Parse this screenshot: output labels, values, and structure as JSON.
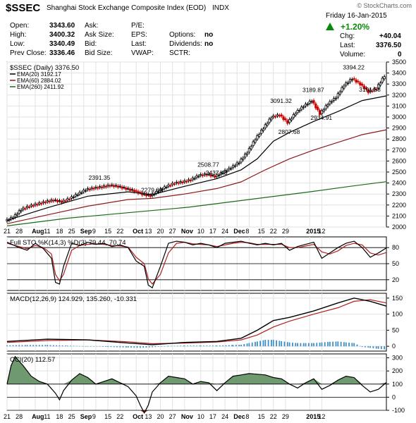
{
  "header": {
    "ticker": "$SSEC",
    "name": "Shanghai Stock Exchange Composite Index (EOD)",
    "exchange": "INDX",
    "watermark": "© StockCharts.com",
    "date_label": "Friday  16-Jan-2015",
    "pct_change": "+1.20%",
    "fields": {
      "open_l": "Open:",
      "open_v": "3343.60",
      "high_l": "High:",
      "high_v": "3400.32",
      "low_l": "Low:",
      "low_v": "3340.49",
      "prev_l": "Prev Close:",
      "prev_v": "3336.46",
      "ask_l": "Ask:",
      "asksize_l": "Ask Size:",
      "bid_l": "Bid:",
      "bidsize_l": "Bid Size:",
      "pe_l": "P/E:",
      "eps_l": "EPS:",
      "last_l": "Last:",
      "vwap_l": "VWAP:",
      "options_l": "Options:",
      "options_v": "no",
      "dividends_l": "Dividends:",
      "dividends_v": "no",
      "sctr_l": "SCTR:",
      "chg_l": "Chg:",
      "chg_v": "+40.04",
      "last2_l": "Last:",
      "last2_v": "3376.50",
      "volume_l": "Volume:",
      "volume_v": "0"
    }
  },
  "chart_data": [
    {
      "type": "candlestick",
      "title": "$SSEC (Daily) 3376.50",
      "ylim": [
        2000,
        3500
      ],
      "yticks": [
        2000,
        2100,
        2200,
        2300,
        2400,
        2500,
        2600,
        2700,
        2800,
        2900,
        3000,
        3100,
        3200,
        3300,
        3400,
        3500
      ],
      "legend": [
        {
          "name": "EMA(20) 3192.17",
          "color": "#000000"
        },
        {
          "name": "EMA(60) 2884.02",
          "color": "#8b1a1a"
        },
        {
          "name": "EMA(260) 2411.92",
          "color": "#1a6b1a"
        }
      ],
      "close_series": [
        [
          0,
          2055
        ],
        [
          4,
          2090
        ],
        [
          8,
          2160
        ],
        [
          12,
          2190
        ],
        [
          16,
          2210
        ],
        [
          20,
          2230
        ],
        [
          24,
          2245
        ],
        [
          28,
          2230
        ],
        [
          32,
          2260
        ],
        [
          36,
          2300
        ],
        [
          40,
          2340
        ],
        [
          44,
          2355
        ],
        [
          48,
          2365
        ],
        [
          52,
          2380
        ],
        [
          56,
          2370
        ],
        [
          60,
          2350
        ],
        [
          64,
          2330
        ],
        [
          68,
          2300
        ],
        [
          72,
          2285
        ],
        [
          76,
          2330
        ],
        [
          80,
          2370
        ],
        [
          84,
          2400
        ],
        [
          88,
          2410
        ],
        [
          92,
          2430
        ],
        [
          96,
          2470
        ],
        [
          100,
          2480
        ],
        [
          104,
          2460
        ],
        [
          108,
          2500
        ],
        [
          112,
          2540
        ],
        [
          116,
          2590
        ],
        [
          120,
          2680
        ],
        [
          124,
          2800
        ],
        [
          128,
          2900
        ],
        [
          132,
          3000
        ],
        [
          136,
          3020
        ],
        [
          140,
          2950
        ],
        [
          144,
          3040
        ],
        [
          148,
          3100
        ],
        [
          152,
          3150
        ],
        [
          156,
          3030
        ],
        [
          160,
          3120
        ],
        [
          164,
          3180
        ],
        [
          168,
          3290
        ],
        [
          172,
          3350
        ],
        [
          176,
          3300
        ],
        [
          180,
          3230
        ],
        [
          184,
          3260
        ],
        [
          188,
          3376
        ]
      ],
      "ema20": [
        [
          0,
          2060
        ],
        [
          20,
          2175
        ],
        [
          40,
          2280
        ],
        [
          60,
          2320
        ],
        [
          72,
          2295
        ],
        [
          88,
          2370
        ],
        [
          104,
          2440
        ],
        [
          116,
          2520
        ],
        [
          124,
          2620
        ],
        [
          132,
          2780
        ],
        [
          140,
          2860
        ],
        [
          152,
          2960
        ],
        [
          164,
          3050
        ],
        [
          176,
          3150
        ],
        [
          188,
          3192
        ]
      ],
      "ema60": [
        [
          0,
          2030
        ],
        [
          20,
          2110
        ],
        [
          40,
          2190
        ],
        [
          60,
          2250
        ],
        [
          72,
          2260
        ],
        [
          88,
          2300
        ],
        [
          104,
          2350
        ],
        [
          116,
          2410
        ],
        [
          128,
          2520
        ],
        [
          140,
          2620
        ],
        [
          152,
          2700
        ],
        [
          164,
          2770
        ],
        [
          176,
          2840
        ],
        [
          188,
          2884
        ]
      ],
      "ema260": [
        [
          0,
          2010
        ],
        [
          30,
          2080
        ],
        [
          60,
          2130
        ],
        [
          90,
          2180
        ],
        [
          120,
          2250
        ],
        [
          150,
          2320
        ],
        [
          170,
          2370
        ],
        [
          188,
          2412
        ]
      ],
      "annotations": [
        {
          "label": "2391.35",
          "x": 46,
          "y": 2391
        },
        {
          "label": "2279.84",
          "x": 72,
          "y": 2280
        },
        {
          "label": "2508.77",
          "x": 100,
          "y": 2509
        },
        {
          "label": "2437.48",
          "x": 104,
          "y": 2437
        },
        {
          "label": "3091.32",
          "x": 136,
          "y": 3091
        },
        {
          "label": "2807.68",
          "x": 140,
          "y": 2808
        },
        {
          "label": "3189.87",
          "x": 152,
          "y": 3190
        },
        {
          "label": "2934.91",
          "x": 156,
          "y": 2935
        },
        {
          "label": "3394.22",
          "x": 172,
          "y": 3394
        },
        {
          "label": "3191.58",
          "x": 180,
          "y": 3192
        }
      ]
    },
    {
      "type": "line",
      "title": "Full STO %K(14,3) %D(3) 79.44, 70.74",
      "ylim": [
        0,
        100
      ],
      "yticks": [
        20,
        50,
        80
      ],
      "ref_lines": [
        20,
        50,
        80
      ],
      "k": [
        [
          0,
          90
        ],
        [
          6,
          80
        ],
        [
          10,
          75
        ],
        [
          14,
          88
        ],
        [
          18,
          78
        ],
        [
          22,
          60
        ],
        [
          24,
          15
        ],
        [
          26,
          12
        ],
        [
          28,
          45
        ],
        [
          32,
          88
        ],
        [
          36,
          84
        ],
        [
          40,
          90
        ],
        [
          44,
          86
        ],
        [
          48,
          88
        ],
        [
          52,
          82
        ],
        [
          56,
          85
        ],
        [
          60,
          80
        ],
        [
          64,
          55
        ],
        [
          68,
          45
        ],
        [
          70,
          10
        ],
        [
          72,
          5
        ],
        [
          76,
          45
        ],
        [
          80,
          88
        ],
        [
          84,
          92
        ],
        [
          88,
          90
        ],
        [
          92,
          85
        ],
        [
          96,
          88
        ],
        [
          100,
          85
        ],
        [
          104,
          80
        ],
        [
          108,
          88
        ],
        [
          112,
          90
        ],
        [
          116,
          92
        ],
        [
          120,
          88
        ],
        [
          124,
          85
        ],
        [
          128,
          88
        ],
        [
          132,
          85
        ],
        [
          136,
          88
        ],
        [
          140,
          75
        ],
        [
          144,
          82
        ],
        [
          148,
          86
        ],
        [
          152,
          90
        ],
        [
          156,
          60
        ],
        [
          160,
          70
        ],
        [
          164,
          80
        ],
        [
          168,
          88
        ],
        [
          172,
          92
        ],
        [
          176,
          80
        ],
        [
          180,
          62
        ],
        [
          184,
          70
        ],
        [
          188,
          79.44
        ]
      ],
      "d": [
        [
          0,
          88
        ],
        [
          6,
          82
        ],
        [
          10,
          78
        ],
        [
          14,
          84
        ],
        [
          18,
          80
        ],
        [
          22,
          68
        ],
        [
          24,
          30
        ],
        [
          26,
          18
        ],
        [
          28,
          30
        ],
        [
          32,
          75
        ],
        [
          36,
          84
        ],
        [
          40,
          86
        ],
        [
          44,
          87
        ],
        [
          48,
          86
        ],
        [
          52,
          84
        ],
        [
          56,
          83
        ],
        [
          60,
          81
        ],
        [
          64,
          62
        ],
        [
          68,
          50
        ],
        [
          70,
          22
        ],
        [
          72,
          12
        ],
        [
          76,
          30
        ],
        [
          80,
          70
        ],
        [
          84,
          88
        ],
        [
          88,
          90
        ],
        [
          92,
          87
        ],
        [
          96,
          86
        ],
        [
          100,
          85
        ],
        [
          104,
          82
        ],
        [
          108,
          85
        ],
        [
          112,
          88
        ],
        [
          116,
          90
        ],
        [
          120,
          89
        ],
        [
          124,
          86
        ],
        [
          128,
          86
        ],
        [
          132,
          86
        ],
        [
          136,
          86
        ],
        [
          140,
          80
        ],
        [
          144,
          80
        ],
        [
          148,
          83
        ],
        [
          152,
          86
        ],
        [
          156,
          72
        ],
        [
          160,
          68
        ],
        [
          164,
          74
        ],
        [
          168,
          84
        ],
        [
          172,
          88
        ],
        [
          176,
          85
        ],
        [
          180,
          70
        ],
        [
          184,
          66
        ],
        [
          188,
          70.74
        ]
      ]
    },
    {
      "type": "line",
      "title": "MACD(12,26,9) 124.929, 135.260, -10.331",
      "ylim": [
        -15,
        165
      ],
      "yticks": [
        0,
        50,
        100,
        150
      ],
      "macd": [
        [
          0,
          15
        ],
        [
          20,
          22
        ],
        [
          40,
          20
        ],
        [
          60,
          10
        ],
        [
          72,
          5
        ],
        [
          88,
          12
        ],
        [
          104,
          15
        ],
        [
          116,
          25
        ],
        [
          124,
          50
        ],
        [
          132,
          80
        ],
        [
          140,
          90
        ],
        [
          152,
          110
        ],
        [
          164,
          135
        ],
        [
          172,
          150
        ],
        [
          180,
          140
        ],
        [
          188,
          125
        ]
      ],
      "signal": [
        [
          0,
          12
        ],
        [
          20,
          18
        ],
        [
          40,
          20
        ],
        [
          60,
          14
        ],
        [
          72,
          8
        ],
        [
          88,
          10
        ],
        [
          104,
          13
        ],
        [
          116,
          20
        ],
        [
          124,
          35
        ],
        [
          132,
          60
        ],
        [
          140,
          78
        ],
        [
          152,
          100
        ],
        [
          164,
          120
        ],
        [
          172,
          140
        ],
        [
          180,
          145
        ],
        [
          188,
          135
        ]
      ],
      "histogram": [
        [
          0,
          3
        ],
        [
          10,
          4
        ],
        [
          20,
          4
        ],
        [
          30,
          2
        ],
        [
          40,
          0
        ],
        [
          50,
          -2
        ],
        [
          60,
          -4
        ],
        [
          66,
          -5
        ],
        [
          72,
          -3
        ],
        [
          80,
          1
        ],
        [
          88,
          2
        ],
        [
          96,
          2
        ],
        [
          104,
          2
        ],
        [
          112,
          4
        ],
        [
          116,
          5
        ],
        [
          120,
          10
        ],
        [
          124,
          15
        ],
        [
          128,
          20
        ],
        [
          132,
          20
        ],
        [
          136,
          16
        ],
        [
          140,
          12
        ],
        [
          144,
          10
        ],
        [
          148,
          10
        ],
        [
          152,
          10
        ],
        [
          156,
          12
        ],
        [
          160,
          14
        ],
        [
          164,
          15
        ],
        [
          168,
          12
        ],
        [
          172,
          10
        ],
        [
          176,
          -2
        ],
        [
          180,
          -5
        ],
        [
          184,
          -8
        ],
        [
          188,
          -10
        ]
      ]
    },
    {
      "type": "area",
      "title": "CCI(20) 112.57",
      "ylim": [
        -100,
        330
      ],
      "yticks": [
        -100,
        0,
        100,
        200,
        300
      ],
      "ref_lines": [
        -100,
        0,
        100
      ],
      "values": [
        [
          0,
          100
        ],
        [
          2,
          240
        ],
        [
          4,
          310
        ],
        [
          8,
          240
        ],
        [
          12,
          160
        ],
        [
          16,
          120
        ],
        [
          20,
          100
        ],
        [
          24,
          30
        ],
        [
          26,
          -20
        ],
        [
          28,
          50
        ],
        [
          32,
          130
        ],
        [
          36,
          180
        ],
        [
          40,
          150
        ],
        [
          44,
          100
        ],
        [
          48,
          120
        ],
        [
          52,
          140
        ],
        [
          56,
          110
        ],
        [
          60,
          80
        ],
        [
          64,
          10
        ],
        [
          66,
          -60
        ],
        [
          68,
          -120
        ],
        [
          70,
          -60
        ],
        [
          72,
          40
        ],
        [
          76,
          110
        ],
        [
          80,
          160
        ],
        [
          84,
          150
        ],
        [
          88,
          140
        ],
        [
          92,
          100
        ],
        [
          96,
          120
        ],
        [
          100,
          110
        ],
        [
          104,
          50
        ],
        [
          108,
          110
        ],
        [
          112,
          160
        ],
        [
          116,
          170
        ],
        [
          120,
          180
        ],
        [
          124,
          175
        ],
        [
          128,
          170
        ],
        [
          132,
          150
        ],
        [
          136,
          140
        ],
        [
          140,
          100
        ],
        [
          144,
          70
        ],
        [
          148,
          110
        ],
        [
          152,
          140
        ],
        [
          156,
          60
        ],
        [
          160,
          90
        ],
        [
          164,
          130
        ],
        [
          168,
          160
        ],
        [
          172,
          150
        ],
        [
          176,
          90
        ],
        [
          180,
          40
        ],
        [
          184,
          60
        ],
        [
          188,
          112.57
        ]
      ]
    }
  ],
  "xaxis": {
    "main_labels": [
      "21",
      "28",
      "Aug",
      "11",
      "18",
      "25",
      "Sep",
      "9",
      "15",
      "22",
      "Oct",
      "13",
      "20",
      "27",
      "Nov",
      "10",
      "17",
      "24",
      "Dec",
      "8",
      "15",
      "22",
      "29",
      "2015",
      "12"
    ],
    "bottom_labels": [
      "21",
      "28",
      "Aug",
      "11",
      "18",
      "25",
      "Sep",
      "9",
      "15",
      "22",
      "Oct",
      "13",
      "20",
      "27",
      "Nov",
      "10",
      "17",
      "24",
      "Dec",
      "8",
      "15",
      "22",
      "29",
      "2015",
      "12"
    ],
    "positions": [
      0,
      6,
      14,
      20,
      26,
      32,
      38,
      44,
      50,
      56,
      64,
      70,
      76,
      82,
      88,
      96,
      102,
      108,
      114,
      120,
      126,
      132,
      138,
      150,
      156
    ]
  }
}
